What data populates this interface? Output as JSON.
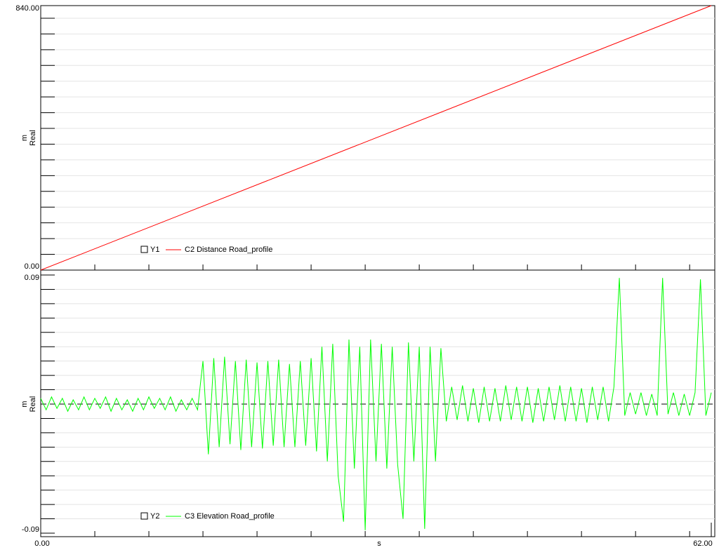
{
  "chart_data": [
    {
      "type": "line",
      "ylabel": "Real",
      "yunit": "m",
      "xlim": [
        0,
        62
      ],
      "xminorticks": [
        5,
        10,
        15,
        20,
        25,
        30,
        35,
        40,
        45,
        50,
        55,
        60
      ],
      "ylim": [
        0,
        840
      ],
      "yticks": [
        {
          "value": 0,
          "label": "0.00"
        },
        {
          "value": 840,
          "label": "840.00"
        }
      ],
      "yminorticks": [
        50,
        100,
        150,
        200,
        250,
        300,
        350,
        400,
        450,
        500,
        550,
        600,
        650,
        700,
        750,
        800
      ],
      "grid": true,
      "zero_line": false,
      "x": [
        0,
        62
      ],
      "series": [
        {
          "axis_name": "Y1",
          "name": "C2 Distance Road_profile",
          "color": "#ff0000",
          "values": [
            0,
            840
          ]
        }
      ]
    },
    {
      "type": "line",
      "ylabel": "Real",
      "yunit": "m",
      "xlabel": "s",
      "xlim": [
        0,
        62
      ],
      "xticks": [
        {
          "value": 0,
          "label": "0.00"
        },
        {
          "value": 62,
          "label": "62.00"
        }
      ],
      "xminorticks": [
        5,
        10,
        15,
        20,
        25,
        30,
        35,
        40,
        45,
        50,
        55,
        60
      ],
      "ylim": [
        -0.09,
        0.09
      ],
      "yticks": [
        {
          "value": -0.09,
          "label": "-0.09"
        },
        {
          "value": 0.09,
          "label": "0.09"
        }
      ],
      "yminorticks": [
        -0.08,
        -0.07,
        -0.06,
        -0.05,
        -0.04,
        -0.03,
        -0.02,
        -0.01,
        0.01,
        0.02,
        0.03,
        0.04,
        0.05,
        0.06,
        0.07,
        0.08
      ],
      "grid": true,
      "zero_line": true,
      "x": [
        0,
        0.5,
        1,
        1.5,
        2,
        2.5,
        3,
        3.5,
        4,
        4.5,
        5,
        5.5,
        6,
        6.5,
        7,
        7.5,
        8,
        8.5,
        9,
        9.5,
        10,
        10.5,
        11,
        11.5,
        12,
        12.5,
        13,
        13.5,
        14,
        14.5,
        15,
        15.5,
        16,
        16.5,
        17,
        17.5,
        18,
        18.5,
        19,
        19.5,
        20,
        20.5,
        21,
        21.5,
        22,
        22.5,
        23,
        23.5,
        24,
        24.5,
        25,
        25.5,
        26,
        26.5,
        27,
        27.5,
        28,
        28.5,
        29,
        29.5,
        30,
        30.5,
        31,
        31.5,
        32,
        32.5,
        33,
        33.5,
        34,
        34.5,
        35,
        35.5,
        36,
        36.5,
        37,
        37.5,
        38,
        38.5,
        39,
        39.5,
        40,
        40.5,
        41,
        41.5,
        42,
        42.5,
        43,
        43.5,
        44,
        44.5,
        45,
        45.5,
        46,
        46.5,
        47,
        47.5,
        48,
        48.5,
        49,
        49.5,
        50,
        50.5,
        51,
        51.5,
        52,
        52.5,
        53,
        53.5,
        54,
        54.5,
        55,
        55.5,
        56,
        56.5,
        57,
        57.5,
        58,
        58.5,
        59,
        59.5,
        60,
        60.5,
        61,
        61.5,
        62
      ],
      "series": [
        {
          "axis_name": "Y2",
          "name": "C3 Elevation Road_profile",
          "color": "#00ff00",
          "values": [
            0.004,
            -0.004,
            0.005,
            -0.003,
            0.004,
            -0.005,
            0.003,
            -0.004,
            0.005,
            -0.004,
            0.004,
            -0.003,
            0.005,
            -0.005,
            0.004,
            -0.004,
            0.003,
            -0.005,
            0.004,
            -0.004,
            0.005,
            -0.003,
            0.004,
            -0.004,
            0.005,
            -0.005,
            0.003,
            -0.004,
            0.004,
            -0.004,
            0.03,
            -0.035,
            0.032,
            -0.03,
            0.033,
            -0.028,
            0.03,
            -0.032,
            0.031,
            -0.03,
            0.029,
            -0.031,
            0.03,
            -0.029,
            0.031,
            -0.03,
            0.028,
            -0.03,
            0.03,
            -0.029,
            0.032,
            -0.033,
            0.04,
            -0.04,
            0.042,
            -0.05,
            -0.082,
            0.045,
            -0.045,
            0.04,
            -0.088,
            0.045,
            -0.04,
            0.042,
            -0.045,
            0.04,
            -0.042,
            -0.08,
            0.043,
            -0.04,
            0.04,
            -0.087,
            0.04,
            -0.04,
            0.039,
            -0.012,
            0.012,
            -0.011,
            0.013,
            -0.012,
            0.011,
            -0.013,
            0.012,
            -0.012,
            0.011,
            -0.012,
            0.013,
            -0.011,
            0.012,
            -0.012,
            0.012,
            -0.013,
            0.011,
            -0.012,
            0.012,
            -0.011,
            0.013,
            -0.012,
            0.012,
            -0.012,
            0.011,
            -0.013,
            0.012,
            -0.011,
            0.012,
            -0.012,
            0.012,
            0.088,
            -0.008,
            0.008,
            -0.007,
            0.008,
            -0.008,
            0.007,
            -0.008,
            0.088,
            -0.007,
            0.008,
            -0.008,
            0.007,
            -0.008,
            0.008,
            0.087,
            -0.008,
            0.008
          ]
        }
      ]
    }
  ]
}
